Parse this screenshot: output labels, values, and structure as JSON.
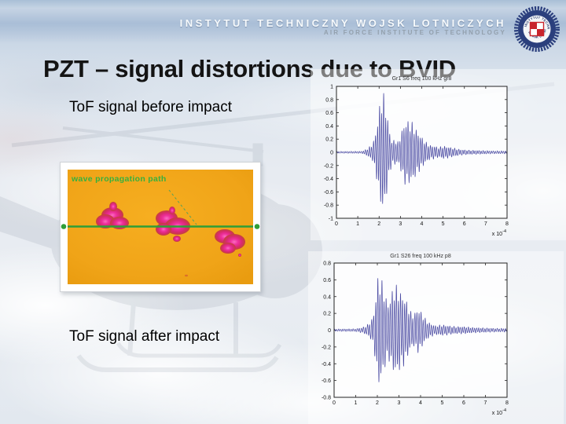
{
  "slide": {
    "header": {
      "line1": "INSTYTUT TECHNICZNY WOJSK LOTNICZYCH",
      "line2": "AIR FORCE INSTITUTE OF TECHNOLOGY"
    },
    "title": "PZT – signal distortions due to BVID",
    "label_before": "ToF signal before impact",
    "label_after": "ToF signal after impact"
  },
  "logo": {
    "ring_text_top": "INSTYTUT TECHNICZNY",
    "ring_text_bottom": "WOJSK LOTNICZYCH",
    "colors": {
      "ring": "#2b3f7d",
      "checker_red": "#c8242c"
    }
  },
  "scan": {
    "annotation": "wave propagation path",
    "damage_sites": 3,
    "colors": {
      "background": "#f0a418",
      "damage": "#e02b93",
      "damage_edge": "#c5413a",
      "path_line": "#2f9e37",
      "annotation_text": "#38b03e"
    }
  },
  "chart_data": [
    {
      "id": "tof-before-impact",
      "type": "line",
      "title": "Gr1 S6 freq 100 kHz gr8",
      "xlim": [
        0,
        8
      ],
      "ylim": [
        -1,
        1
      ],
      "xticks": [
        "0",
        "1",
        "2",
        "3",
        "4",
        "5",
        "6",
        "7",
        "8"
      ],
      "yticks": [
        "1",
        "0.8",
        "0.6",
        "0.4",
        "0.2",
        "0",
        "-0.2",
        "-0.4",
        "-0.6",
        "-0.8",
        "-1"
      ],
      "x_scale": {
        "base": "x 10",
        "exp": "-4"
      },
      "line_color": "#4a4aa2",
      "grid": false,
      "carrier_cycles_per_unit": 10.5,
      "envelope": [
        [
          0,
          0.012
        ],
        [
          1.2,
          0.015
        ],
        [
          1.45,
          0.05
        ],
        [
          1.7,
          0.12
        ],
        [
          1.85,
          0.3
        ],
        [
          2.0,
          0.62
        ],
        [
          2.15,
          0.88
        ],
        [
          2.3,
          0.72
        ],
        [
          2.45,
          0.38
        ],
        [
          2.6,
          0.16
        ],
        [
          2.75,
          0.18
        ],
        [
          2.9,
          0.14
        ],
        [
          3.05,
          0.3
        ],
        [
          3.2,
          0.44
        ],
        [
          3.4,
          0.45
        ],
        [
          3.6,
          0.4
        ],
        [
          3.8,
          0.3
        ],
        [
          4.0,
          0.22
        ],
        [
          4.2,
          0.14
        ],
        [
          4.4,
          0.1
        ],
        [
          4.6,
          0.09
        ],
        [
          4.8,
          0.07
        ],
        [
          5.0,
          0.09
        ],
        [
          5.2,
          0.08
        ],
        [
          5.5,
          0.06
        ],
        [
          5.8,
          0.04
        ],
        [
          6.2,
          0.03
        ],
        [
          6.8,
          0.025
        ],
        [
          7.4,
          0.02
        ],
        [
          8,
          0.02
        ]
      ]
    },
    {
      "id": "tof-after-impact",
      "type": "line",
      "title": "Gr1 S26 freq 100 kHz p8",
      "xlim": [
        0,
        8
      ],
      "ylim": [
        -0.8,
        0.8
      ],
      "xticks": [
        "0",
        "1",
        "2",
        "3",
        "4",
        "5",
        "6",
        "7",
        "8"
      ],
      "yticks": [
        "0.8",
        "0.6",
        "0.4",
        "0.2",
        "0",
        "-0.2",
        "-0.4",
        "-0.6",
        "-0.8"
      ],
      "x_scale": {
        "base": "x 10",
        "exp": "-4"
      },
      "line_color": "#4a4aa2",
      "grid": false,
      "carrier_cycles_per_unit": 10.5,
      "envelope": [
        [
          0,
          0.012
        ],
        [
          1.0,
          0.015
        ],
        [
          1.3,
          0.03
        ],
        [
          1.5,
          0.05
        ],
        [
          1.7,
          0.1
        ],
        [
          1.85,
          0.2
        ],
        [
          1.95,
          0.45
        ],
        [
          2.05,
          0.63
        ],
        [
          2.2,
          0.55
        ],
        [
          2.35,
          0.42
        ],
        [
          2.5,
          0.3
        ],
        [
          2.65,
          0.42
        ],
        [
          2.8,
          0.5
        ],
        [
          2.95,
          0.48
        ],
        [
          3.1,
          0.42
        ],
        [
          3.25,
          0.38
        ],
        [
          3.4,
          0.3
        ],
        [
          3.55,
          0.2
        ],
        [
          3.7,
          0.18
        ],
        [
          3.85,
          0.25
        ],
        [
          4.0,
          0.22
        ],
        [
          4.15,
          0.15
        ],
        [
          4.3,
          0.1
        ],
        [
          4.5,
          0.07
        ],
        [
          4.7,
          0.05
        ],
        [
          5.0,
          0.06
        ],
        [
          5.3,
          0.05
        ],
        [
          5.6,
          0.04
        ],
        [
          6.0,
          0.04
        ],
        [
          6.4,
          0.03
        ],
        [
          6.9,
          0.025
        ],
        [
          7.5,
          0.02
        ],
        [
          8,
          0.02
        ]
      ]
    }
  ]
}
